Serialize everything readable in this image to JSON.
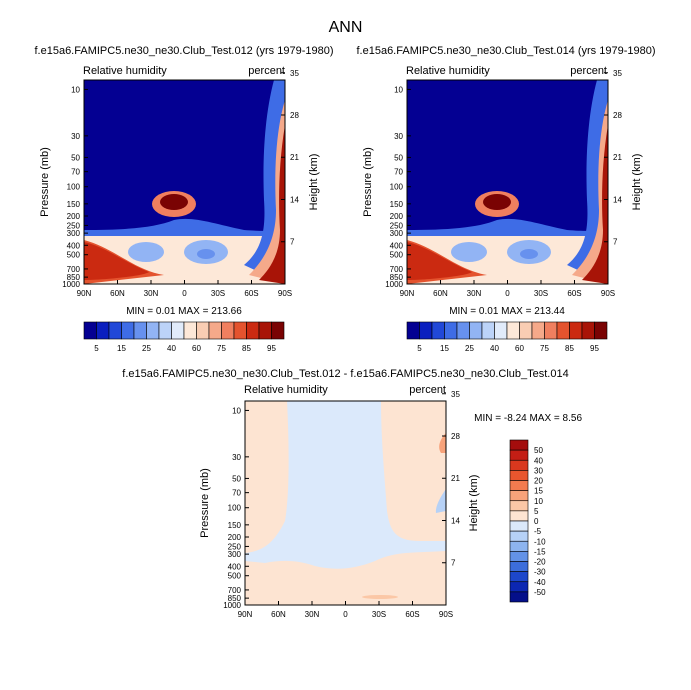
{
  "figure_title": "ANN",
  "chart_data": [
    {
      "type": "heatmap",
      "title": "f.e15a6.FAMIPC5.ne30_ne30.Club_Test.012 (yrs 1979-1980)",
      "left_string": "Relative humidity",
      "right_string": "percent",
      "ylabel": "Pressure (mb)",
      "y2label": "Height (km)",
      "x_ticks": [
        "90N",
        "60N",
        "30N",
        "0",
        "30S",
        "60S",
        "90S"
      ],
      "y_ticks": [
        "10",
        "30",
        "50",
        "70",
        "100",
        "150",
        "200",
        "250",
        "300",
        "400",
        "500",
        "700",
        "850",
        "1000"
      ],
      "y2_ticks": [
        "35",
        "28",
        "21",
        "14",
        "7"
      ],
      "stats": "MIN =  0.01  MAX = 213.66",
      "colorbar_labels": [
        "5",
        "15",
        "25",
        "40",
        "60",
        "75",
        "85",
        "95"
      ],
      "colorbar_colors": [
        "#040092",
        "#0a1fbf",
        "#2148d8",
        "#3e6ce6",
        "#6791ee",
        "#92b4f4",
        "#bcd3f8",
        "#e1ebfa",
        "#fde8d8",
        "#f9cdb3",
        "#f5a98a",
        "#f07f5f",
        "#e4532e",
        "#cb2a11",
        "#a81407",
        "#7a0303"
      ],
      "min": 0.01,
      "max": 213.66
    },
    {
      "type": "heatmap",
      "title": "f.e15a6.FAMIPC5.ne30_ne30.Club_Test.014 (yrs 1979-1980)",
      "left_string": "Relative humidity",
      "right_string": "percent",
      "ylabel": "Pressure (mb)",
      "y2label": "Height (km)",
      "x_ticks": [
        "90N",
        "60N",
        "30N",
        "0",
        "30S",
        "60S",
        "90S"
      ],
      "y_ticks": [
        "10",
        "30",
        "50",
        "70",
        "100",
        "150",
        "200",
        "250",
        "300",
        "400",
        "500",
        "700",
        "850",
        "1000"
      ],
      "y2_ticks": [
        "35",
        "28",
        "21",
        "14",
        "7"
      ],
      "stats": "MIN =  0.01  MAX = 213.44",
      "colorbar_labels": [
        "5",
        "15",
        "25",
        "40",
        "60",
        "75",
        "85",
        "95"
      ],
      "colorbar_colors": [
        "#040092",
        "#0a1fbf",
        "#2148d8",
        "#3e6ce6",
        "#6791ee",
        "#92b4f4",
        "#bcd3f8",
        "#e1ebfa",
        "#fde8d8",
        "#f9cdb3",
        "#f5a98a",
        "#f07f5f",
        "#e4532e",
        "#cb2a11",
        "#a81407",
        "#7a0303"
      ],
      "min": 0.01,
      "max": 213.44
    },
    {
      "type": "heatmap",
      "title": "f.e15a6.FAMIPC5.ne30_ne30.Club_Test.012 - f.e15a6.FAMIPC5.ne30_ne30.Club_Test.014",
      "left_string": "Relative humidity",
      "right_string": "percent",
      "ylabel": "Pressure (mb)",
      "y2label": "Height (km)",
      "x_ticks": [
        "90N",
        "60N",
        "30N",
        "0",
        "30S",
        "60S",
        "90S"
      ],
      "y_ticks": [
        "10",
        "30",
        "50",
        "70",
        "100",
        "150",
        "200",
        "250",
        "300",
        "400",
        "500",
        "700",
        "850",
        "1000"
      ],
      "y2_ticks": [
        "35",
        "28",
        "21",
        "14",
        "7"
      ],
      "stats": "MIN = -8.24  MAX =  8.56",
      "colorbar_labels": [
        "50",
        "40",
        "30",
        "20",
        "15",
        "10",
        "5",
        "0",
        "-5",
        "-10",
        "-15",
        "-20",
        "-30",
        "-40",
        "-50"
      ],
      "colorbar_colors": [
        "#a40d0d",
        "#c41e15",
        "#d9381e",
        "#e8562e",
        "#f27b4f",
        "#f7a27a",
        "#fbc7a6",
        "#fde4d2",
        "#dbe9fb",
        "#b6d1f6",
        "#8db4ef",
        "#6392e7",
        "#3c6ddb",
        "#1d47cb",
        "#0c27b2",
        "#040f8a"
      ],
      "min": -8.24,
      "max": 8.56
    }
  ]
}
